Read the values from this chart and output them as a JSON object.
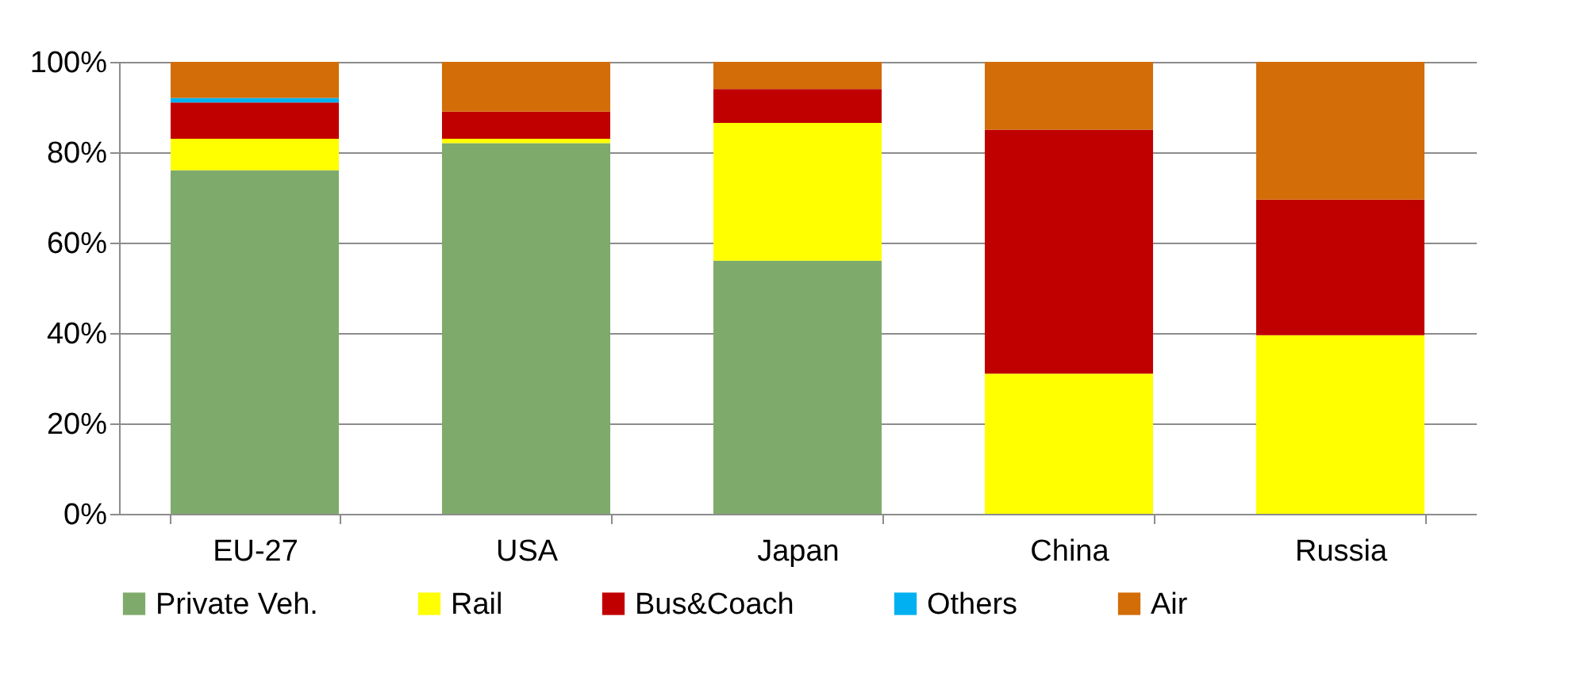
{
  "chart_data": {
    "type": "bar",
    "stacked": true,
    "categories": [
      "EU-27",
      "USA",
      "Japan",
      "China",
      "Russia"
    ],
    "series": [
      {
        "name": "Private Veh.",
        "color": "#7eab6b",
        "values": [
          76,
          82,
          56,
          0,
          0
        ]
      },
      {
        "name": "Rail",
        "color": "#ffff00",
        "values": [
          7,
          1,
          30.5,
          31,
          39.5
        ]
      },
      {
        "name": "Bus&Coach",
        "color": "#c00000",
        "values": [
          8,
          6,
          7.5,
          54,
          30
        ]
      },
      {
        "name": "Others",
        "color": "#00b0f0",
        "values": [
          1,
          0,
          0,
          0,
          0
        ]
      },
      {
        "name": "Air",
        "color": "#d36d07",
        "values": [
          8,
          11,
          6,
          15,
          30.5
        ]
      }
    ],
    "ylim": [
      0,
      100
    ],
    "yticks": [
      {
        "value": 0,
        "label": "0%"
      },
      {
        "value": 20,
        "label": "20%"
      },
      {
        "value": 40,
        "label": "40%"
      },
      {
        "value": 60,
        "label": "60%"
      },
      {
        "value": 80,
        "label": "80%"
      },
      {
        "value": 100,
        "label": "100%"
      }
    ],
    "grid": "y",
    "legend": "bottom"
  }
}
